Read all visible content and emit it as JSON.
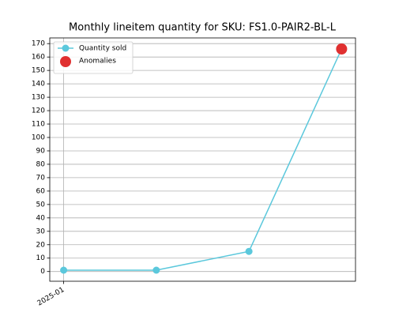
{
  "chart_data": {
    "type": "line",
    "title": "Monthly lineitem quantity for SKU: FS1.0-PAIR2-BL-L",
    "categories": [
      "2025-01",
      null,
      null,
      null
    ],
    "series": [
      {
        "name": "Quantity sold",
        "color": "#5bc8dc",
        "values": [
          1,
          1,
          15,
          166
        ]
      },
      {
        "name": "Anomalies",
        "color": "#e03030",
        "type": "scatter",
        "values": [
          null,
          null,
          null,
          166
        ]
      }
    ],
    "ylim": [
      -7.25,
      174.25
    ],
    "yticks": [
      0,
      10,
      20,
      30,
      40,
      50,
      60,
      70,
      80,
      90,
      100,
      110,
      120,
      130,
      140,
      150,
      160,
      170
    ],
    "grid": true,
    "legend": "upper left"
  }
}
